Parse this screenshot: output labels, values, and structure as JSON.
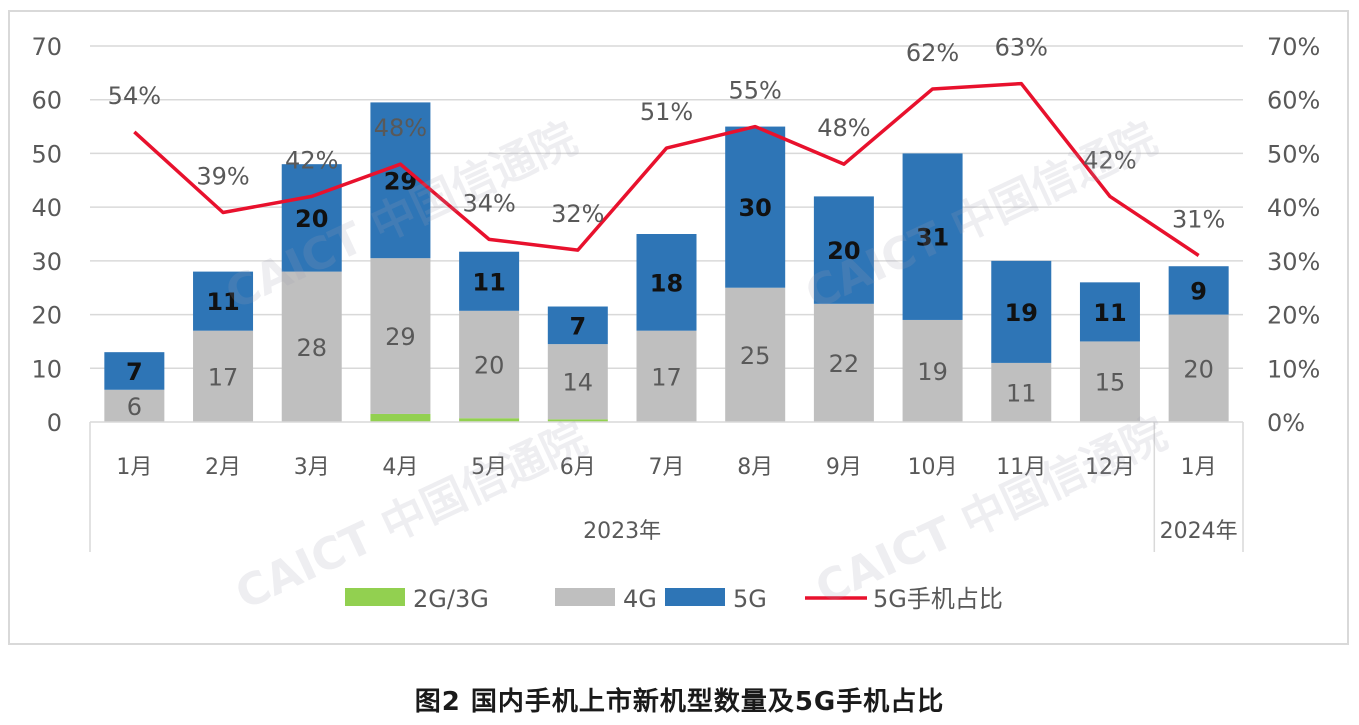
{
  "caption": "图2   国内手机上市新机型数量及5G手机占比",
  "colors": {
    "c2g3g": "#92d050",
    "c4g": "#bfbfbf",
    "c5g": "#2e75b6",
    "line": "#e8112d",
    "axis_text": "#595959",
    "grid": "#d9d9d9"
  },
  "watermark": "CAICT 中国信通院",
  "chart_data": {
    "type": "bar",
    "stacked": true,
    "categories": [
      "1月",
      "2月",
      "3月",
      "4月",
      "5月",
      "6月",
      "7月",
      "8月",
      "9月",
      "10月",
      "11月",
      "12月",
      "1月"
    ],
    "year_groups": [
      {
        "label": "2023年",
        "from": 0,
        "to": 11
      },
      {
        "label": "2024年",
        "from": 12,
        "to": 12
      }
    ],
    "series": [
      {
        "name": "2G/3G",
        "values": [
          0,
          0,
          0,
          1.5,
          0.7,
          0.5,
          0,
          0,
          0,
          0,
          0,
          0,
          0
        ]
      },
      {
        "name": "4G",
        "values": [
          6,
          17,
          28,
          29,
          20,
          14,
          17,
          25,
          22,
          19,
          11,
          15,
          20
        ]
      },
      {
        "name": "5G",
        "values": [
          7,
          11,
          20,
          29,
          11,
          7,
          18,
          30,
          20,
          31,
          19,
          11,
          9
        ]
      }
    ],
    "line_series": {
      "name": "5G手机占比",
      "values": [
        54,
        39,
        42,
        48,
        34,
        32,
        51,
        55,
        48,
        62,
        63,
        42,
        31
      ]
    },
    "y_left": {
      "min": 0,
      "max": 70,
      "step": 10,
      "ticks": [
        "0",
        "10",
        "20",
        "30",
        "40",
        "50",
        "60",
        "70"
      ]
    },
    "y_right": {
      "min": 0,
      "max": 70,
      "step": 10,
      "ticks": [
        "0%",
        "10%",
        "20%",
        "30%",
        "40%",
        "50%",
        "60%",
        "70%"
      ]
    },
    "legend": [
      {
        "label": "2G/3G",
        "kind": "box",
        "series": "2G/3G"
      },
      {
        "label": "4G",
        "kind": "box",
        "series": "4G"
      },
      {
        "label": "5G",
        "kind": "box",
        "series": "5G"
      },
      {
        "label": "5G手机占比",
        "kind": "line"
      }
    ],
    "legend_position": "bottom",
    "grid": true
  }
}
